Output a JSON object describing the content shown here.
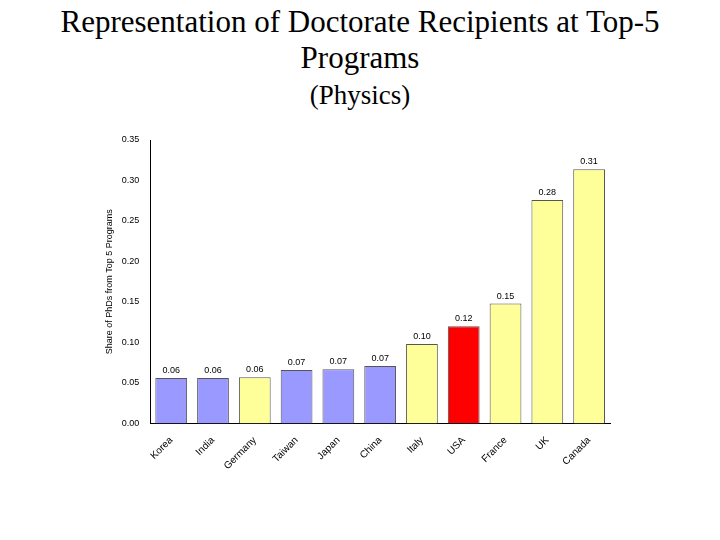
{
  "chart_data": {
    "type": "bar",
    "title": "Representation of Doctorate Recipients at Top-5 Programs",
    "subtitle": "(Physics)",
    "y_label": "Share of PhDs from Top 5 Programs",
    "categories": [
      "Korea",
      "India",
      "Germany",
      "Taiwan",
      "Japan",
      "China",
      "Italy",
      "USA",
      "France",
      "UK",
      "Canada"
    ],
    "values": [
      0.056,
      0.056,
      0.057,
      0.066,
      0.067,
      0.071,
      0.098,
      0.12,
      0.148,
      0.276,
      0.314
    ],
    "value_labels": [
      "0.06",
      "0.06",
      "0.06",
      "0.07",
      "0.07",
      "0.07",
      "0.10",
      "0.12",
      "0.15",
      "0.28",
      "0.31"
    ],
    "colors": [
      "#9999ff",
      "#9999ff",
      "#ffff99",
      "#9999ff",
      "#9999ff",
      "#9999ff",
      "#ffff99",
      "#ff0000",
      "#ffff99",
      "#ffff99",
      "#ffff99"
    ],
    "ylim": [
      0,
      0.35
    ],
    "yticks": [
      {
        "value": 0,
        "label": "0.00"
      },
      {
        "value": 0.05,
        "label": "0.05"
      },
      {
        "value": 0.1,
        "label": "0.10"
      },
      {
        "value": 0.15,
        "label": "0.15"
      },
      {
        "value": 0.2,
        "label": "0.20"
      },
      {
        "value": 0.25,
        "label": "0.25"
      },
      {
        "value": 0.3,
        "label": "0.30"
      },
      {
        "value": 0.35,
        "label": "0.35"
      }
    ],
    "grid": false,
    "data_labels": true
  }
}
